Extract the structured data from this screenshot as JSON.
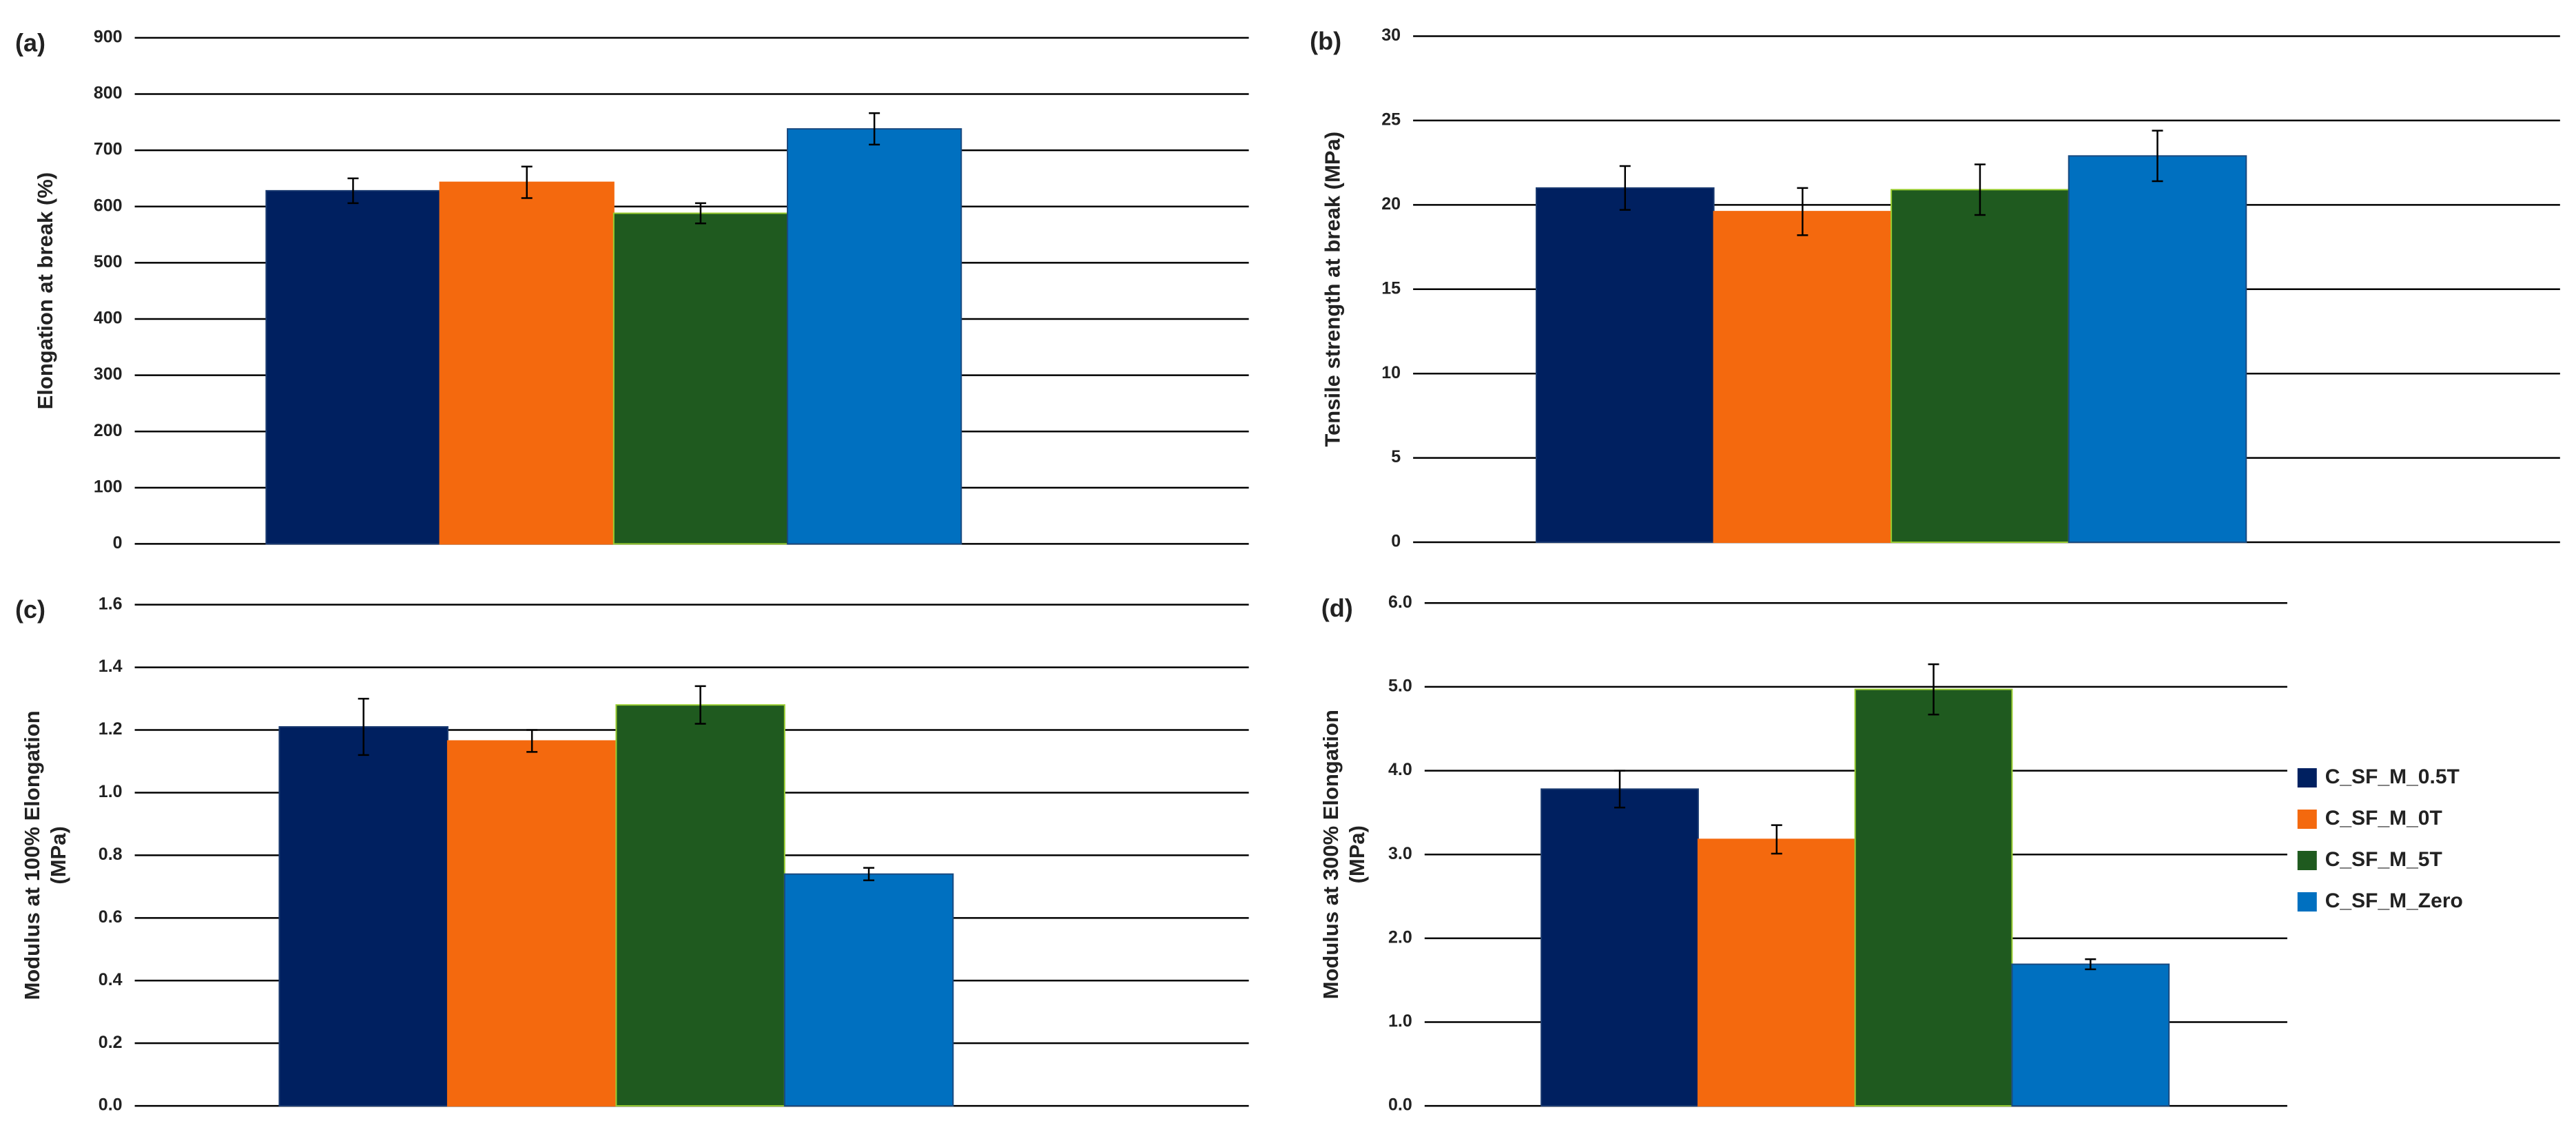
{
  "chart_data": [
    {
      "type": "bar",
      "panel_label": "(a)",
      "ylabel": "Elongation at break (%)",
      "ylim": [
        0,
        900
      ],
      "yticks": [
        0,
        100,
        200,
        300,
        400,
        500,
        600,
        700,
        800,
        900
      ],
      "grid": true,
      "series": [
        {
          "color": "#002060",
          "values": [
            628
          ],
          "errors": [
            22
          ]
        },
        {
          "color": "#f4690e",
          "values": [
            643
          ],
          "errors": [
            28
          ]
        },
        {
          "color": "#1f5a1f",
          "values": [
            588
          ],
          "errors": [
            18
          ]
        },
        {
          "color": "#0070c0",
          "values": [
            738
          ],
          "errors": [
            28
          ]
        }
      ]
    },
    {
      "type": "bar",
      "panel_label": "(b)",
      "ylabel": "Tensile strength at break (MPa)",
      "ylim": [
        0,
        30
      ],
      "yticks": [
        0,
        5,
        10,
        15,
        20,
        25,
        30
      ],
      "grid": true,
      "series": [
        {
          "color": "#002060",
          "values": [
            21
          ],
          "errors": [
            1.3
          ]
        },
        {
          "color": "#f4690e",
          "values": [
            19.6
          ],
          "errors": [
            1.4
          ]
        },
        {
          "color": "#1f5a1f",
          "values": [
            20.9
          ],
          "errors": [
            1.5
          ]
        },
        {
          "color": "#0070c0",
          "values": [
            22.9
          ],
          "errors": [
            1.5
          ]
        }
      ]
    },
    {
      "type": "bar",
      "panel_label": "(c)",
      "ylabel": [
        "Modulus at 100% Elongation",
        "(MPa)"
      ],
      "ylim": [
        0,
        1.6
      ],
      "yticks": [
        {
          "value": 0,
          "label": "0.0"
        },
        0.2,
        0.4,
        0.6,
        0.8,
        {
          "value": 1,
          "label": "1.0"
        },
        1.2,
        1.4,
        1.6
      ],
      "grid": true,
      "series": [
        {
          "color": "#002060",
          "values": [
            1.21
          ],
          "errors": [
            0.09
          ]
        },
        {
          "color": "#f4690e",
          "values": [
            1.165
          ],
          "errors": [
            0.035
          ]
        },
        {
          "color": "#1f5a1f",
          "values": [
            1.28
          ],
          "errors": [
            0.06
          ]
        },
        {
          "color": "#0070c0",
          "values": [
            0.74
          ],
          "errors": [
            0.02
          ]
        }
      ]
    },
    {
      "type": "bar",
      "panel_label": "(d)",
      "ylabel": [
        "Modulus at 300% Elongation",
        "(MPa)"
      ],
      "ylim": [
        0,
        6
      ],
      "yticks": [
        {
          "value": 0,
          "label": "0.0"
        },
        {
          "value": 1,
          "label": "1.0"
        },
        {
          "value": 2,
          "label": "2.0"
        },
        {
          "value": 3,
          "label": "3.0"
        },
        {
          "value": 4,
          "label": "4.0"
        },
        {
          "value": 5,
          "label": "5.0"
        },
        {
          "value": 6,
          "label": "6.0"
        }
      ],
      "grid": true,
      "series": [
        {
          "name": "C_SF_M_0.5T",
          "color": "#002060",
          "values": [
            3.78
          ],
          "errors": [
            0.22
          ]
        },
        {
          "name": "C_SF_M_0T",
          "color": "#f4690e",
          "values": [
            3.18
          ],
          "errors": [
            0.17
          ]
        },
        {
          "name": "C_SF_M_5T",
          "color": "#1f5a1f",
          "values": [
            4.97
          ],
          "errors": [
            0.3
          ]
        },
        {
          "name": "C_SF_M_Zero",
          "color": "#0070c0",
          "values": [
            1.69
          ],
          "errors": [
            0.06
          ]
        }
      ]
    }
  ]
}
